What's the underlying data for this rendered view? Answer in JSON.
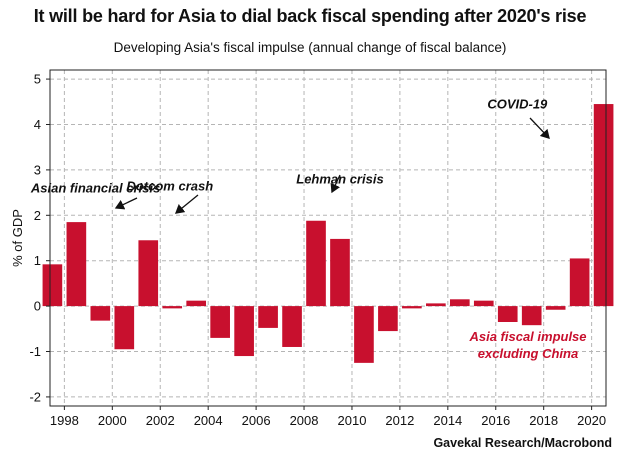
{
  "chart_data": {
    "type": "bar",
    "title": "It will be hard for Asia to dial back fiscal spending after 2020's rise",
    "subtitle": "Developing Asia's fiscal impulse (annual change of fiscal balance)",
    "ylabel": "% of GDP",
    "source": "Gavekal Research/Macrobond",
    "bar_color": "#c8102e",
    "grid": true,
    "xlim": [
      1997.4,
      2020.6
    ],
    "ylim": [
      -2.2,
      5.2
    ],
    "yticks": [
      -2,
      -1,
      0,
      1,
      2,
      3,
      4,
      5
    ],
    "ytick_labels": [
      "-2",
      "-1",
      "0",
      "1",
      "2",
      "3",
      "4",
      "5"
    ],
    "xticks": [
      1998,
      2000,
      2002,
      2004,
      2006,
      2008,
      2010,
      2012,
      2014,
      2016,
      2018,
      2020
    ],
    "xtick_labels": [
      "1998",
      "2000",
      "2002",
      "2004",
      "2006",
      "2008",
      "2010",
      "2012",
      "2014",
      "2016",
      "2018",
      "2020"
    ],
    "x": [
      1997.5,
      1998.5,
      1999.5,
      2000.5,
      2001.5,
      2002.5,
      2003.5,
      2004.5,
      2005.5,
      2006.5,
      2007.5,
      2008.5,
      2009.5,
      2010.5,
      2011.5,
      2012.5,
      2013.5,
      2014.5,
      2015.5,
      2016.5,
      2017.5,
      2018.5,
      2019.5,
      2020.5
    ],
    "values": [
      0.92,
      1.85,
      -0.32,
      -0.95,
      1.45,
      -0.05,
      0.12,
      -0.7,
      -1.1,
      -0.48,
      -0.9,
      1.88,
      1.48,
      -1.25,
      -0.55,
      -0.05,
      0.06,
      0.15,
      0.12,
      -0.35,
      -0.42,
      -0.08,
      1.05,
      4.45
    ],
    "annotations": [
      {
        "text": "Asian financial crisis",
        "x": 1999.3,
        "y": 2.5,
        "arrow_to": [
          1999.2,
          2.15
        ]
      },
      {
        "text": "Dotcom crash",
        "x": 2002.4,
        "y": 2.55,
        "arrow_to": [
          2002.3,
          1.95
        ]
      },
      {
        "text": "Lehman crisis",
        "x": 2009.5,
        "y": 2.7,
        "arrow_to": [
          2009.0,
          2.45
        ]
      },
      {
        "text": "COVID-19",
        "x": 2016.9,
        "y": 4.35,
        "arrow_to": [
          2019.5,
          3.65
        ]
      }
    ],
    "series_label": [
      "Asia fiscal impulse",
      "excluding China"
    ]
  }
}
